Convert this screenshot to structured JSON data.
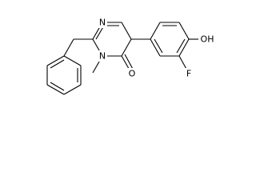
{
  "labels": {
    "n1": "N",
    "n3": "N",
    "o": "O",
    "f": "F",
    "oh": "OH"
  }
}
